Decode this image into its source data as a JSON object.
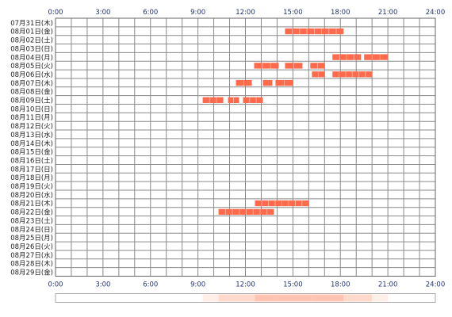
{
  "chart_data": {
    "type": "timeline",
    "x_tick_labels": [
      "0:00",
      "3:00",
      "6:00",
      "9:00",
      "12:00",
      "15:00",
      "18:00",
      "21:00",
      "24:00"
    ],
    "x_range_hours": [
      0,
      24
    ],
    "rows": [
      "07月31日(木)",
      "08月01日(金)",
      "08月02日(土)",
      "08月03日(日)",
      "08月04日(月)",
      "08月05日(火)",
      "08月06日(水)",
      "08月07日(木)",
      "08月08日(金)",
      "08月09日(土)",
      "08月10日(日)",
      "08月11日(月)",
      "08月12日(火)",
      "08月13日(水)",
      "08月14日(木)",
      "08月15日(金)",
      "08月16日(土)",
      "08月17日(日)",
      "08月18日(月)",
      "08月19日(火)",
      "08月20日(水)",
      "08月21日(木)",
      "08月22日(金)",
      "08月23日(土)",
      "08月24日(日)",
      "08月25日(月)",
      "08月26日(火)",
      "08月27日(水)",
      "08月28日(木)",
      "08月29日(金)"
    ],
    "segments": [
      {
        "row": 1,
        "start": 14.5,
        "end": 18.2
      },
      {
        "row": 4,
        "start": 17.5,
        "end": 19.3
      },
      {
        "row": 4,
        "start": 19.5,
        "end": 21.0
      },
      {
        "row": 5,
        "start": 12.55,
        "end": 14.1
      },
      {
        "row": 5,
        "start": 14.5,
        "end": 15.6
      },
      {
        "row": 5,
        "start": 16.1,
        "end": 17.0
      },
      {
        "row": 6,
        "start": 16.2,
        "end": 17.0
      },
      {
        "row": 6,
        "start": 17.5,
        "end": 20.0
      },
      {
        "row": 7,
        "start": 11.4,
        "end": 12.4
      },
      {
        "row": 7,
        "start": 13.1,
        "end": 13.7
      },
      {
        "row": 7,
        "start": 13.9,
        "end": 15.0
      },
      {
        "row": 9,
        "start": 9.3,
        "end": 10.6
      },
      {
        "row": 9,
        "start": 10.9,
        "end": 11.6
      },
      {
        "row": 9,
        "start": 11.85,
        "end": 13.1
      },
      {
        "row": 21,
        "start": 12.6,
        "end": 16.0
      },
      {
        "row": 22,
        "start": 10.3,
        "end": 13.8
      }
    ],
    "grid": true,
    "colors": {
      "segment_fill": "#ff6a4c",
      "segment_line": "#ffd0c4",
      "grid_line": "#8a8a8a",
      "frame": "#666666",
      "hour_text": "#223377",
      "date_text": "#222222",
      "summary_light": "#ffeee8",
      "summary_mid": "#ffd9cc",
      "summary_dark": "#ffc4b2"
    },
    "summary_bar": {
      "levels": [
        {
          "start": 9.3,
          "end": 10.3,
          "level": 1
        },
        {
          "start": 10.3,
          "end": 11.4,
          "level": 2
        },
        {
          "start": 11.4,
          "end": 12.6,
          "level": 2
        },
        {
          "start": 12.6,
          "end": 14.0,
          "level": 3
        },
        {
          "start": 14.0,
          "end": 16.2,
          "level": 3
        },
        {
          "start": 16.2,
          "end": 18.2,
          "level": 3
        },
        {
          "start": 18.2,
          "end": 20.0,
          "level": 2
        },
        {
          "start": 20.0,
          "end": 21.0,
          "level": 1
        }
      ]
    }
  }
}
